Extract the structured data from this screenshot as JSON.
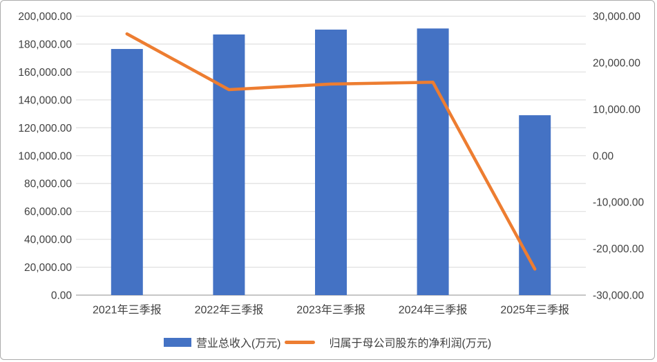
{
  "chart_data": {
    "type": "bar",
    "subtype": "bar-line-combo",
    "categories": [
      "2021年三季报",
      "2022年三季报",
      "2023年三季报",
      "2024年三季报",
      "2025年三季报"
    ],
    "series": [
      {
        "name": "营业总收入(万元)",
        "type": "bar",
        "axis": "left",
        "color": "#4472c4",
        "values": [
          176500,
          186900,
          190400,
          191200,
          129000
        ]
      },
      {
        "name": "归属于母公司股东的净利润(万元)",
        "type": "line",
        "axis": "right",
        "color": "#ed7d31",
        "values": [
          26200,
          14200,
          15400,
          15800,
          -24400
        ]
      }
    ],
    "left_axis": {
      "min": 0,
      "max": 200000,
      "step": 20000,
      "tick_labels_top_to_bottom": [
        "200,000.00",
        "180,000.00",
        "160,000.00",
        "140,000.00",
        "120,000.00",
        "100,000.00",
        "80,000.00",
        "60,000.00",
        "40,000.00",
        "20,000.00",
        "0.00"
      ]
    },
    "right_axis": {
      "min": -30000,
      "max": 30000,
      "step": 10000,
      "tick_labels_top_to_bottom": [
        "30,000.00",
        "20,000.00",
        "10,000.00",
        "0.00",
        "-10,000.00",
        "-20,000.00",
        "-30,000.00"
      ]
    },
    "grid": true,
    "legend_position": "bottom",
    "title": ""
  },
  "colors": {
    "bar_fill": "#4472c4",
    "line_stroke": "#ed7d31",
    "gridline": "#e2e2e2",
    "axis_line": "#c6c6c6",
    "tick_text": "#404040",
    "frame_border": "#ababab",
    "background": "#ffffff"
  }
}
